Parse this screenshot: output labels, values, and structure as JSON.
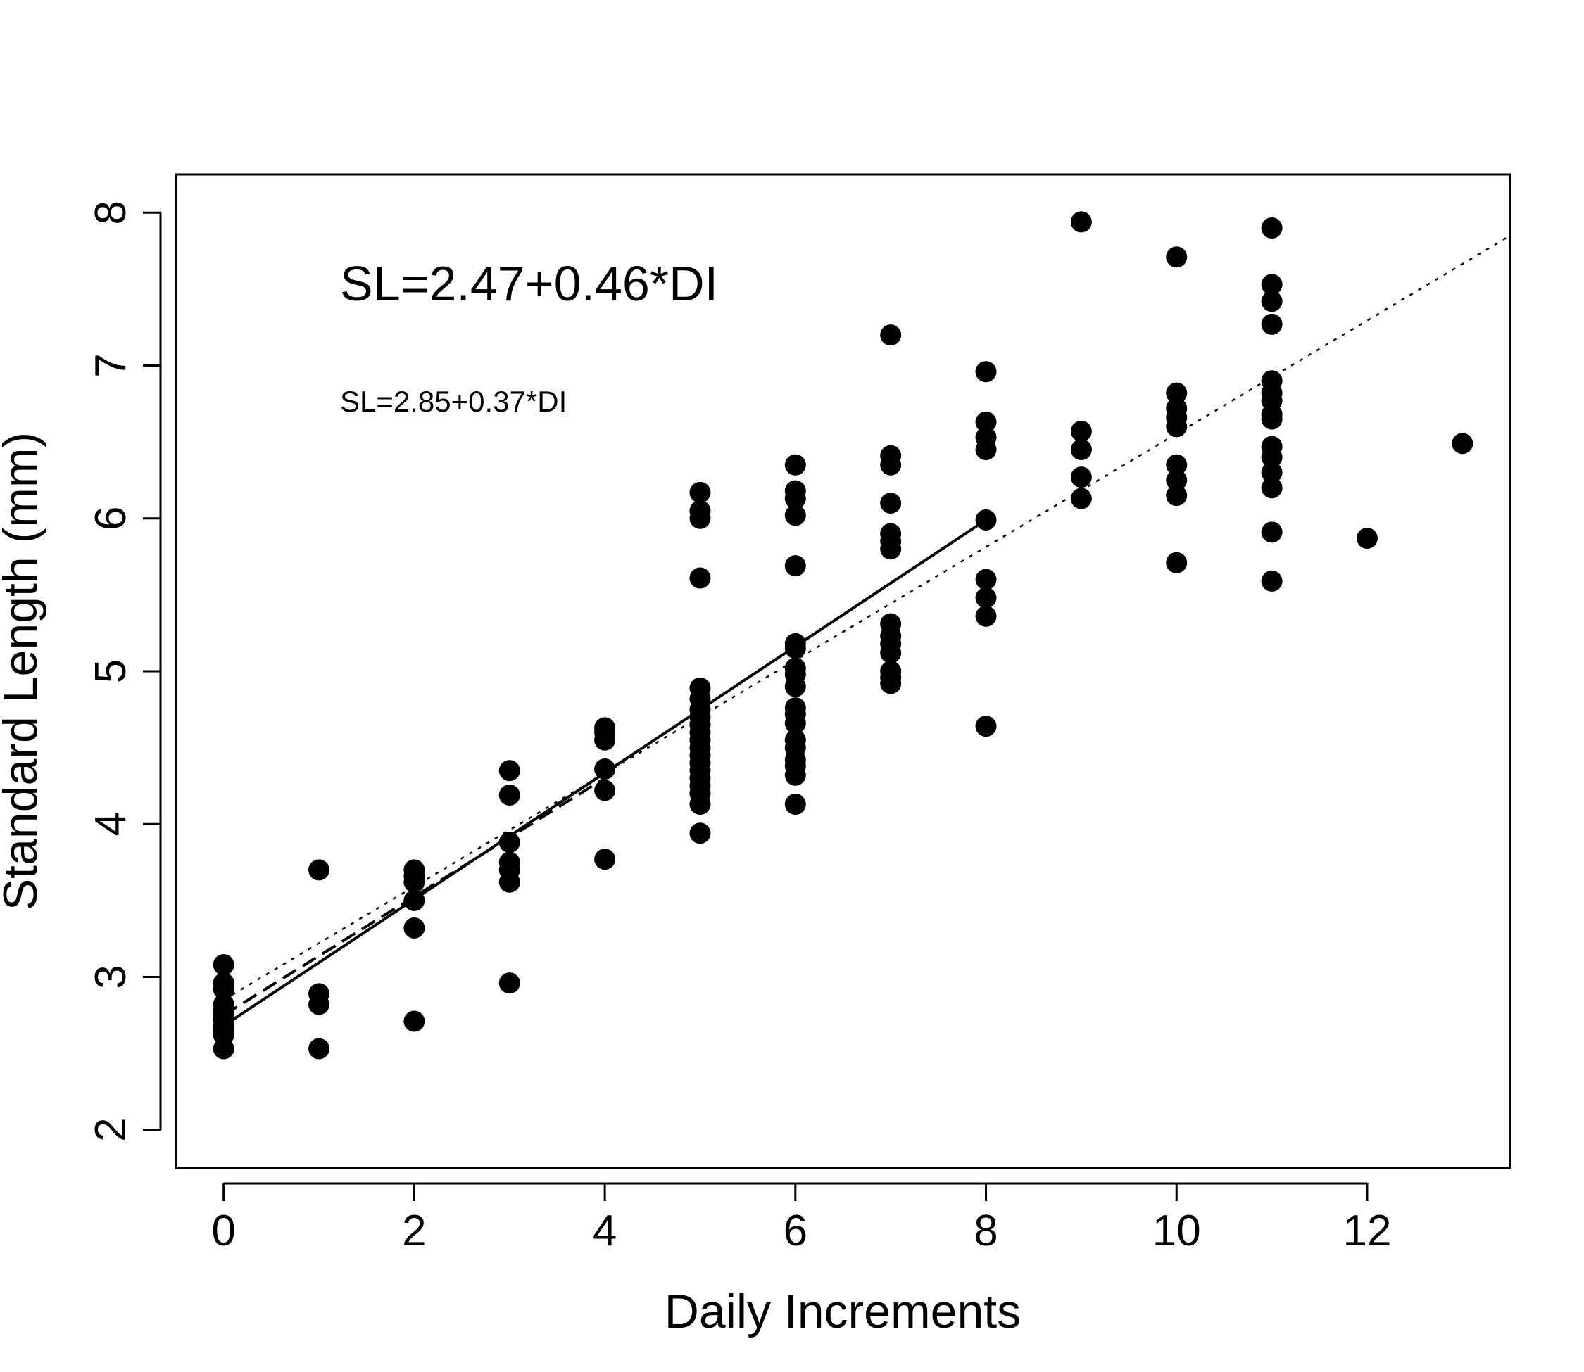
{
  "chart_data": {
    "type": "scatter",
    "xlabel": "Daily Increments",
    "ylabel": "Standard Length (mm)",
    "xlim": [
      -0.5,
      13.5
    ],
    "ylim": [
      1.75,
      8.25
    ],
    "xticks": [
      0,
      2,
      4,
      6,
      8,
      10,
      12
    ],
    "yticks": [
      2,
      3,
      4,
      5,
      6,
      7,
      8
    ],
    "grid": false,
    "annotations": [
      {
        "id": "eq1",
        "text": "SL=2.47+0.46*DI"
      },
      {
        "id": "eq2",
        "text": "SL=2.85+0.37*DI"
      }
    ],
    "lines": [
      {
        "style": "solid",
        "x0": 0,
        "x1": 8,
        "y0": 2.68,
        "y1": 5.99
      },
      {
        "style": "dashed",
        "x0": 0,
        "x1": 4,
        "y0": 2.75,
        "y1": 4.3
      },
      {
        "style": "dotted",
        "x0": 0,
        "x1": 13.5,
        "y0": 2.85,
        "y1": 7.85
      }
    ],
    "points": [
      [
        0,
        3.08
      ],
      [
        0,
        2.96
      ],
      [
        0,
        2.92
      ],
      [
        0,
        2.82
      ],
      [
        0,
        2.78
      ],
      [
        0,
        2.75
      ],
      [
        0,
        2.72
      ],
      [
        0,
        2.68
      ],
      [
        0,
        2.65
      ],
      [
        0,
        2.62
      ],
      [
        0,
        2.53
      ],
      [
        1,
        3.7
      ],
      [
        1,
        2.89
      ],
      [
        1,
        2.82
      ],
      [
        1,
        2.53
      ],
      [
        2,
        3.7
      ],
      [
        2,
        3.66
      ],
      [
        2,
        3.62
      ],
      [
        2,
        3.5
      ],
      [
        2,
        3.32
      ],
      [
        2,
        2.71
      ],
      [
        3,
        4.35
      ],
      [
        3,
        4.19
      ],
      [
        3,
        3.88
      ],
      [
        3,
        3.75
      ],
      [
        3,
        3.7
      ],
      [
        3,
        3.62
      ],
      [
        3,
        2.96
      ],
      [
        4,
        4.63
      ],
      [
        4,
        4.6
      ],
      [
        4,
        4.55
      ],
      [
        4,
        4.36
      ],
      [
        4,
        4.22
      ],
      [
        4,
        3.77
      ],
      [
        5,
        6.17
      ],
      [
        5,
        6.05
      ],
      [
        5,
        6.0
      ],
      [
        5,
        5.61
      ],
      [
        5,
        4.89
      ],
      [
        5,
        4.82
      ],
      [
        5,
        4.75
      ],
      [
        5,
        4.7
      ],
      [
        5,
        4.65
      ],
      [
        5,
        4.6
      ],
      [
        5,
        4.55
      ],
      [
        5,
        4.5
      ],
      [
        5,
        4.45
      ],
      [
        5,
        4.4
      ],
      [
        5,
        4.35
      ],
      [
        5,
        4.3
      ],
      [
        5,
        4.25
      ],
      [
        5,
        4.2
      ],
      [
        5,
        4.13
      ],
      [
        5,
        3.94
      ],
      [
        6,
        6.35
      ],
      [
        6,
        6.18
      ],
      [
        6,
        6.13
      ],
      [
        6,
        6.02
      ],
      [
        6,
        5.69
      ],
      [
        6,
        5.18
      ],
      [
        6,
        5.15
      ],
      [
        6,
        5.02
      ],
      [
        6,
        4.98
      ],
      [
        6,
        4.9
      ],
      [
        6,
        4.76
      ],
      [
        6,
        4.72
      ],
      [
        6,
        4.66
      ],
      [
        6,
        4.55
      ],
      [
        6,
        4.5
      ],
      [
        6,
        4.42
      ],
      [
        6,
        4.38
      ],
      [
        6,
        4.32
      ],
      [
        6,
        4.13
      ],
      [
        7,
        7.2
      ],
      [
        7,
        6.41
      ],
      [
        7,
        6.35
      ],
      [
        7,
        6.1
      ],
      [
        7,
        5.9
      ],
      [
        7,
        5.85
      ],
      [
        7,
        5.8
      ],
      [
        7,
        5.31
      ],
      [
        7,
        5.23
      ],
      [
        7,
        5.18
      ],
      [
        7,
        5.12
      ],
      [
        7,
        5.0
      ],
      [
        7,
        4.96
      ],
      [
        7,
        4.92
      ],
      [
        8,
        6.96
      ],
      [
        8,
        6.63
      ],
      [
        8,
        6.53
      ],
      [
        8,
        6.45
      ],
      [
        8,
        5.99
      ],
      [
        8,
        5.6
      ],
      [
        8,
        5.48
      ],
      [
        8,
        5.36
      ],
      [
        8,
        4.64
      ],
      [
        9,
        7.94
      ],
      [
        9,
        6.57
      ],
      [
        9,
        6.45
      ],
      [
        9,
        6.27
      ],
      [
        9,
        6.13
      ],
      [
        10,
        7.71
      ],
      [
        10,
        6.82
      ],
      [
        10,
        6.72
      ],
      [
        10,
        6.66
      ],
      [
        10,
        6.6
      ],
      [
        10,
        6.35
      ],
      [
        10,
        6.25
      ],
      [
        10,
        6.15
      ],
      [
        10,
        5.71
      ],
      [
        11,
        7.9
      ],
      [
        11,
        7.53
      ],
      [
        11,
        7.42
      ],
      [
        11,
        7.27
      ],
      [
        11,
        6.9
      ],
      [
        11,
        6.82
      ],
      [
        11,
        6.77
      ],
      [
        11,
        6.68
      ],
      [
        11,
        6.65
      ],
      [
        11,
        6.47
      ],
      [
        11,
        6.4
      ],
      [
        11,
        6.3
      ],
      [
        11,
        6.2
      ],
      [
        11,
        5.91
      ],
      [
        11,
        5.59
      ],
      [
        12,
        5.87
      ],
      [
        13,
        6.49
      ]
    ]
  }
}
